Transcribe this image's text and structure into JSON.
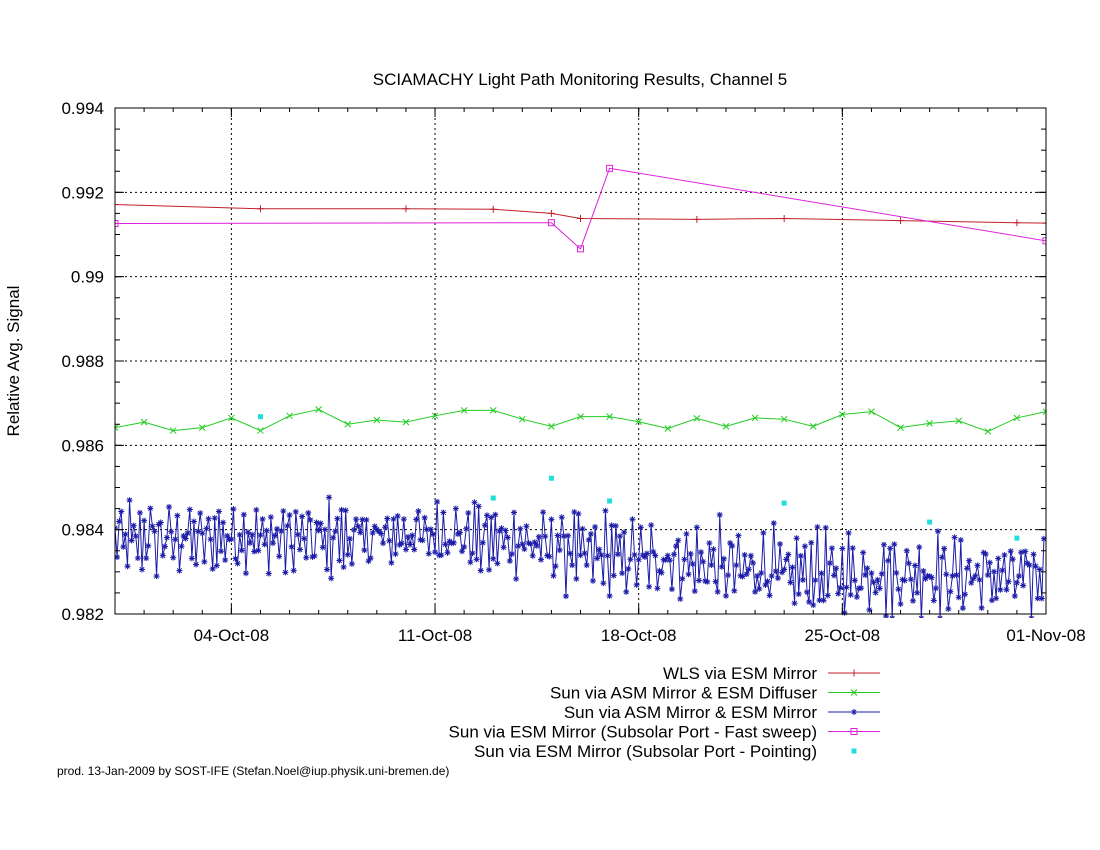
{
  "footer": "prod. 13-Jan-2009 by SOST-IFE (Stefan.Noel@iup.physik.uni-bremen.de)",
  "chart_data": {
    "type": "line",
    "title": "SCIAMACHY Light Path Monitoring Results, Channel 5",
    "xlabel": "",
    "ylabel": "Relative Avg. Signal",
    "x_unit": "date (2008)",
    "xlim": [
      "2008-09-30",
      "2008-11-01"
    ],
    "ylim": [
      0.982,
      0.994
    ],
    "yticks": [
      0.982,
      0.984,
      0.986,
      0.988,
      0.99,
      0.992,
      0.994
    ],
    "ytick_labels": [
      "0.982",
      "0.984",
      "0.986",
      "0.988",
      "0.99",
      "0.992",
      "0.994"
    ],
    "xticks": [
      "2008-10-04",
      "2008-10-11",
      "2008-10-18",
      "2008-10-25",
      "2008-11-01"
    ],
    "xtick_labels": [
      "04-Oct-08",
      "11-Oct-08",
      "18-Oct-08",
      "25-Oct-08",
      "01-Nov-08"
    ],
    "grid": true,
    "legend_position": "bottom-right, below plot",
    "series": [
      {
        "name": "WLS via ESM Mirror",
        "color": "#c0202a",
        "marker": "plus",
        "x": [
          "2008-09-30",
          "2008-10-05",
          "2008-10-10",
          "2008-10-13",
          "2008-10-15",
          "2008-10-16",
          "2008-10-20",
          "2008-10-23",
          "2008-10-27",
          "2008-10-31",
          "2008-11-01"
        ],
        "y": [
          0.99171,
          0.99161,
          0.99161,
          0.9916,
          0.9915,
          0.99138,
          0.99136,
          0.99138,
          0.99133,
          0.99128,
          0.99127
        ]
      },
      {
        "name": "Sun via ASM Mirror & ESM Diffuser",
        "color": "#22cc22",
        "marker": "cross",
        "x": [
          "2008-09-30",
          "2008-10-01",
          "2008-10-02",
          "2008-10-03",
          "2008-10-04",
          "2008-10-05",
          "2008-10-06",
          "2008-10-07",
          "2008-10-08",
          "2008-10-09",
          "2008-10-10",
          "2008-10-11",
          "2008-10-12",
          "2008-10-13",
          "2008-10-14",
          "2008-10-15",
          "2008-10-16",
          "2008-10-17",
          "2008-10-18",
          "2008-10-19",
          "2008-10-20",
          "2008-10-21",
          "2008-10-22",
          "2008-10-23",
          "2008-10-24",
          "2008-10-25",
          "2008-10-26",
          "2008-10-27",
          "2008-10-28",
          "2008-10-29",
          "2008-10-30",
          "2008-10-31",
          "2008-11-01"
        ],
        "y": [
          0.98642,
          0.98655,
          0.98635,
          0.98642,
          0.98665,
          0.98635,
          0.9867,
          0.98685,
          0.9865,
          0.9866,
          0.98655,
          0.9867,
          0.98683,
          0.98683,
          0.98662,
          0.98645,
          0.98668,
          0.98668,
          0.98656,
          0.9864,
          0.98664,
          0.98645,
          0.98665,
          0.98662,
          0.98645,
          0.98673,
          0.9868,
          0.98642,
          0.98652,
          0.98658,
          0.98633,
          0.98665,
          0.9868
        ]
      },
      {
        "name": "Sun via ASM Mirror & ESM Mirror",
        "color": "#1c1ca8",
        "marker": "star",
        "note": "dense noisy series, approx. 15 readings per day, oscillating roughly between 0.9822 and 0.9848 with slight downward drift",
        "x": [
          "2008-09-30",
          "2008-10-04",
          "2008-10-08",
          "2008-10-11",
          "2008-10-14",
          "2008-10-17",
          "2008-10-20",
          "2008-10-23",
          "2008-10-26",
          "2008-10-29",
          "2008-11-01"
        ],
        "y": [
          0.9838,
          0.9838,
          0.9838,
          0.9839,
          0.9837,
          0.9834,
          0.9832,
          0.983,
          0.9829,
          0.9829,
          0.9829
        ],
        "spread": [
          0.001,
          0.0009,
          0.0009,
          0.0008,
          0.0009,
          0.001,
          0.001,
          0.001,
          0.001,
          0.001,
          0.001
        ]
      },
      {
        "name": "Sun via ESM Mirror (Subsolar Port - Fast sweep)",
        "color": "#dd22dd",
        "marker": "square",
        "x": [
          "2008-09-30",
          "2008-10-15",
          "2008-10-16",
          "2008-10-17",
          "2008-11-01"
        ],
        "y": [
          0.99126,
          0.99128,
          0.99066,
          0.99257,
          0.99085
        ]
      },
      {
        "name": "Sun via ESM Mirror (Subsolar Port - Pointing)",
        "color": "#22dddd",
        "marker": "dot",
        "x": [
          "2008-10-05",
          "2008-10-13",
          "2008-10-15",
          "2008-10-17",
          "2008-10-23",
          "2008-10-28",
          "2008-10-31"
        ],
        "y": [
          0.98668,
          0.98475,
          0.98522,
          0.98468,
          0.98463,
          0.98418,
          0.9838
        ]
      }
    ]
  }
}
